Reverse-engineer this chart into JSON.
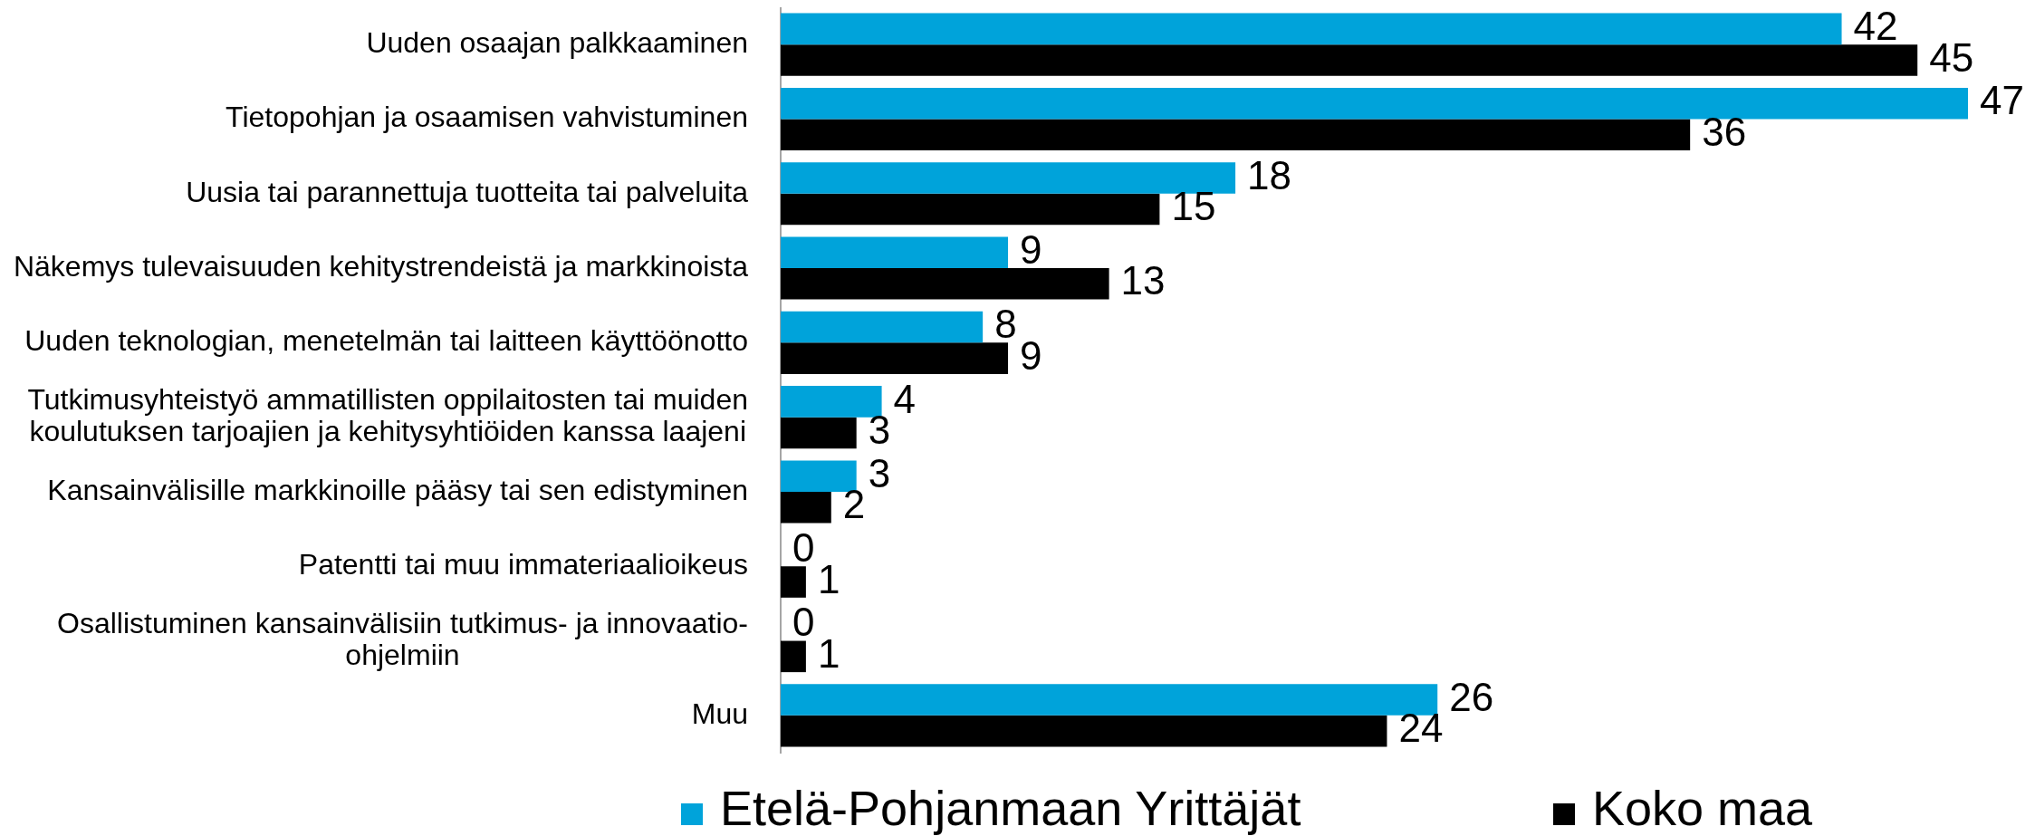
{
  "chart_data": {
    "type": "bar",
    "orientation": "horizontal",
    "categories": [
      "Uuden osaajan palkkaaminen",
      "Tietopohjan ja osaamisen vahvistuminen",
      "Uusia tai parannettuja tuotteita tai palveluita",
      "Näkemys tulevaisuuden kehitystrendeistä ja markkinoista",
      "Uuden teknologian, menetelmän tai laitteen käyttöönotto",
      "Tutkimusyhteistyö ammatillisten oppilaitosten tai muiden koulutuksen tarjoajien ja kehitysyhtiöiden kanssa laajeni",
      "Kansainvälisille markkinoille pääsy tai sen edistyminen",
      "Patentti tai muu immateriaalioikeus",
      "Osallistuminen kansainvälisiin tutkimus- ja innovaatio-ohjelmiin",
      "Muu"
    ],
    "series": [
      {
        "name": "Etelä-Pohjanmaan Yrittäjät",
        "color": "#00a3da",
        "values": [
          42,
          47,
          18,
          9,
          8,
          4,
          3,
          0,
          0,
          26
        ]
      },
      {
        "name": "Koko maa",
        "color": "#000000",
        "values": [
          45,
          36,
          15,
          13,
          9,
          3,
          2,
          1,
          1,
          24
        ]
      }
    ],
    "data_labels": true,
    "legend": "bottom"
  }
}
